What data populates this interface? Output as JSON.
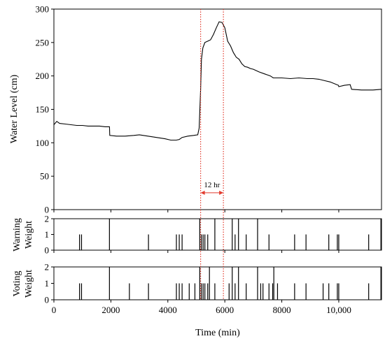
{
  "chart_data": [
    {
      "type": "line",
      "ylabel": "Water Level (cm)",
      "xlim": [
        0,
        11500
      ],
      "ylim": [
        0,
        300
      ],
      "yticks": [
        0,
        50,
        100,
        150,
        200,
        250,
        300
      ],
      "x": [
        0,
        100,
        200,
        400,
        600,
        800,
        1000,
        1200,
        1400,
        1600,
        1800,
        1950,
        1960,
        2200,
        2500,
        2800,
        3000,
        3300,
        3600,
        3900,
        4100,
        4300,
        4400,
        4500,
        4700,
        4900,
        5050,
        5100,
        5150,
        5180,
        5230,
        5300,
        5400,
        5500,
        5600,
        5700,
        5800,
        5900,
        6000,
        6100,
        6200,
        6300,
        6400,
        6500,
        6600,
        6700,
        6800,
        6900,
        7000,
        7200,
        7400,
        7600,
        7700,
        7800,
        8000,
        8300,
        8600,
        8900,
        9100,
        9300,
        9500,
        9700,
        9990,
        10000,
        10200,
        10400,
        10450,
        10800,
        11200,
        11500
      ],
      "series": [
        {
          "values": [
            127,
            132,
            129,
            128,
            127,
            126,
            126,
            125,
            125,
            125,
            124,
            124,
            111,
            110,
            110,
            111,
            112,
            110,
            108,
            106,
            104,
            104,
            105,
            108,
            110,
            111,
            112,
            122,
            180,
            225,
            242,
            250,
            252,
            254,
            262,
            272,
            281,
            280,
            272,
            252,
            245,
            235,
            228,
            225,
            218,
            214,
            213,
            211,
            210,
            206,
            203,
            200,
            197,
            197,
            197,
            196,
            197,
            196,
            196,
            195,
            193,
            191,
            186,
            184,
            186,
            187,
            180,
            179,
            179,
            180
          ]
        }
      ],
      "annotations": {
        "vlines": [
          5150,
          5950
        ],
        "span_label": "12 hr",
        "span_y": 12
      }
    },
    {
      "type": "bar",
      "ylabel": "Warning Weight",
      "xlim": [
        0,
        11500
      ],
      "ylim": [
        0,
        2
      ],
      "yticks": [
        0,
        1,
        2
      ],
      "spikes": [
        {
          "x": 900,
          "v": 1
        },
        {
          "x": 970,
          "v": 1
        },
        {
          "x": 1950,
          "v": 2
        },
        {
          "x": 3320,
          "v": 1
        },
        {
          "x": 4300,
          "v": 1
        },
        {
          "x": 4400,
          "v": 1
        },
        {
          "x": 4500,
          "v": 1
        },
        {
          "x": 5120,
          "v": 2
        },
        {
          "x": 5180,
          "v": 1
        },
        {
          "x": 5240,
          "v": 1
        },
        {
          "x": 5300,
          "v": 1
        },
        {
          "x": 5400,
          "v": 1
        },
        {
          "x": 5650,
          "v": 2
        },
        {
          "x": 6260,
          "v": 2
        },
        {
          "x": 6360,
          "v": 1
        },
        {
          "x": 6480,
          "v": 2
        },
        {
          "x": 6750,
          "v": 1
        },
        {
          "x": 7150,
          "v": 2
        },
        {
          "x": 7550,
          "v": 1
        },
        {
          "x": 8450,
          "v": 1
        },
        {
          "x": 8850,
          "v": 1
        },
        {
          "x": 9650,
          "v": 1
        },
        {
          "x": 9950,
          "v": 1
        },
        {
          "x": 10000,
          "v": 1
        },
        {
          "x": 11050,
          "v": 1
        },
        {
          "x": 11480,
          "v": 2
        }
      ]
    },
    {
      "type": "bar",
      "ylabel": "Voting Weight",
      "xlabel": "Time (min)",
      "xlim": [
        0,
        11500
      ],
      "ylim": [
        0,
        2
      ],
      "yticks": [
        0,
        1,
        2
      ],
      "xticks": [
        0,
        2000,
        4000,
        6000,
        8000,
        10000
      ],
      "xticklabels": [
        "0",
        "2000",
        "4000",
        "6000",
        "8000",
        "10,000"
      ],
      "spikes": [
        {
          "x": 900,
          "v": 1
        },
        {
          "x": 970,
          "v": 1
        },
        {
          "x": 1950,
          "v": 2
        },
        {
          "x": 2650,
          "v": 1
        },
        {
          "x": 3320,
          "v": 1
        },
        {
          "x": 4300,
          "v": 1
        },
        {
          "x": 4400,
          "v": 1
        },
        {
          "x": 4500,
          "v": 1
        },
        {
          "x": 4750,
          "v": 1
        },
        {
          "x": 4950,
          "v": 1
        },
        {
          "x": 5120,
          "v": 2
        },
        {
          "x": 5180,
          "v": 1
        },
        {
          "x": 5240,
          "v": 1
        },
        {
          "x": 5300,
          "v": 1
        },
        {
          "x": 5400,
          "v": 1
        },
        {
          "x": 5460,
          "v": 2
        },
        {
          "x": 5650,
          "v": 1
        },
        {
          "x": 6150,
          "v": 1
        },
        {
          "x": 6260,
          "v": 2
        },
        {
          "x": 6360,
          "v": 1
        },
        {
          "x": 6480,
          "v": 2
        },
        {
          "x": 6750,
          "v": 1
        },
        {
          "x": 7150,
          "v": 2
        },
        {
          "x": 7260,
          "v": 1
        },
        {
          "x": 7340,
          "v": 1
        },
        {
          "x": 7550,
          "v": 1
        },
        {
          "x": 7680,
          "v": 1
        },
        {
          "x": 7720,
          "v": 2
        },
        {
          "x": 7850,
          "v": 1
        },
        {
          "x": 8450,
          "v": 1
        },
        {
          "x": 8850,
          "v": 1
        },
        {
          "x": 9450,
          "v": 1
        },
        {
          "x": 9650,
          "v": 1
        },
        {
          "x": 9950,
          "v": 1
        },
        {
          "x": 10000,
          "v": 1
        },
        {
          "x": 11050,
          "v": 1
        },
        {
          "x": 11480,
          "v": 2
        }
      ]
    }
  ]
}
